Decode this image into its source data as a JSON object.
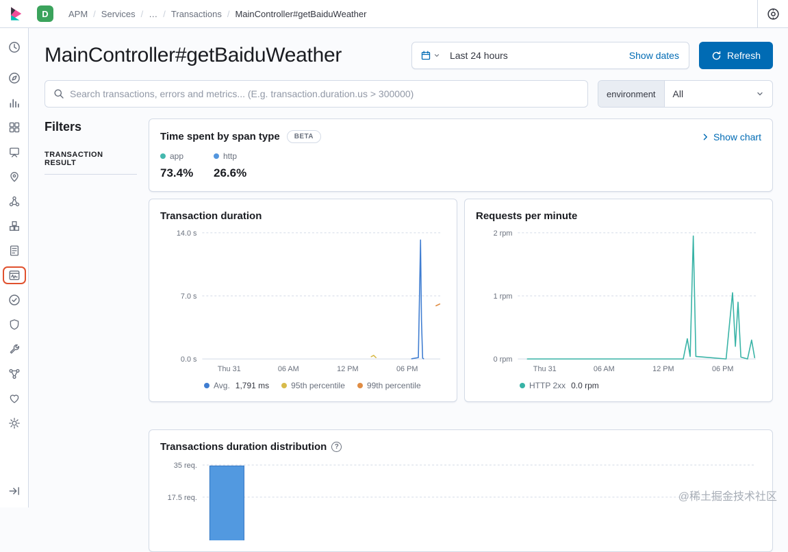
{
  "colors": {
    "accent": "#006bb4",
    "space_badge": "#3ba35c",
    "nav_highlight": "#e0512e"
  },
  "topbar": {
    "space_badge": "D",
    "breadcrumbs": [
      {
        "label": "APM"
      },
      {
        "label": "Services"
      },
      {
        "label": "…"
      },
      {
        "label": "Transactions"
      },
      {
        "label": "MainController#getBaiduWeather",
        "current": true
      }
    ]
  },
  "header": {
    "title": "MainController#getBaiduWeather",
    "time_range": "Last 24 hours",
    "show_dates_label": "Show dates",
    "refresh_label": "Refresh"
  },
  "search": {
    "placeholder": "Search transactions, errors and metrics... (E.g. transaction.duration.us > 300000)"
  },
  "environment_filter": {
    "label": "environment",
    "value": "All"
  },
  "filters": {
    "heading": "Filters",
    "section_title": "TRANSACTION RESULT"
  },
  "span_panel": {
    "title": "Time spent by span type",
    "beta_label": "BETA",
    "show_chart_label": "Show chart",
    "items": [
      {
        "label": "app",
        "value": "73.4%",
        "color": "#45b8ae"
      },
      {
        "label": "http",
        "value": "26.6%",
        "color": "#5396de"
      }
    ]
  },
  "icons": {
    "help": "?"
  },
  "chart_data": [
    {
      "type": "line",
      "title": "Transaction duration",
      "ylim": [
        0,
        14
      ],
      "y_ticks": [
        {
          "v": 14,
          "label": "14.0 s"
        },
        {
          "v": 7,
          "label": "7.0 s"
        },
        {
          "v": 0,
          "label": "0.0 s"
        }
      ],
      "x_ticks": [
        {
          "f": 0.113,
          "label": "Thu 31"
        },
        {
          "f": 0.362,
          "label": "06 AM"
        },
        {
          "f": 0.611,
          "label": "12 PM"
        },
        {
          "f": 0.861,
          "label": "06 PM"
        }
      ],
      "series": [
        {
          "name": "Avg.",
          "color": "#3f7dd1",
          "points": [
            [
              0.88,
              0.02
            ],
            [
              0.908,
              0.15
            ],
            [
              0.917,
              13.2
            ],
            [
              0.921,
              4.3
            ],
            [
              0.926,
              0.1
            ],
            [
              0.93,
              0.02
            ]
          ]
        },
        {
          "name": "95th percentile",
          "color": "#d8bb4b",
          "points": [
            [
              0.71,
              0.25
            ],
            [
              0.72,
              0.4
            ],
            [
              0.73,
              0.15
            ]
          ]
        },
        {
          "name": "99th percentile",
          "color": "#e08d44",
          "points": [
            [
              0.982,
              5.9
            ],
            [
              0.998,
              6.1
            ]
          ]
        }
      ],
      "legend": [
        {
          "label": "Avg.",
          "value": "1,791 ms",
          "color": "#3f7dd1"
        },
        {
          "label": "95th percentile",
          "value": "",
          "color": "#d8bb4b"
        },
        {
          "label": "99th percentile",
          "value": "",
          "color": "#e08d44"
        }
      ]
    },
    {
      "type": "line",
      "title": "Requests per minute",
      "ylim": [
        0,
        2
      ],
      "y_ticks": [
        {
          "v": 2,
          "label": "2 rpm"
        },
        {
          "v": 1,
          "label": "1 rpm"
        },
        {
          "v": 0,
          "label": "0 rpm"
        }
      ],
      "x_ticks": [
        {
          "f": 0.113,
          "label": "Thu 31"
        },
        {
          "f": 0.362,
          "label": "06 AM"
        },
        {
          "f": 0.611,
          "label": "12 PM"
        },
        {
          "f": 0.861,
          "label": "06 PM"
        }
      ],
      "series": [
        {
          "name": "HTTP 2xx",
          "color": "#38b3a6",
          "points": [
            [
              0.04,
              0
            ],
            [
              0.695,
              0
            ],
            [
              0.712,
              0.32
            ],
            [
              0.724,
              0.04
            ],
            [
              0.737,
              1.95
            ],
            [
              0.748,
              0.04
            ],
            [
              0.875,
              0
            ],
            [
              0.902,
              1.05
            ],
            [
              0.914,
              0.2
            ],
            [
              0.925,
              0.9
            ],
            [
              0.937,
              0.03
            ],
            [
              0.965,
              0
            ],
            [
              0.982,
              0.3
            ],
            [
              0.995,
              0.02
            ]
          ]
        }
      ],
      "legend": [
        {
          "label": "HTTP 2xx",
          "value": "0.0 rpm",
          "color": "#38b3a6"
        }
      ]
    },
    {
      "type": "bar",
      "title": "Transactions duration distribution",
      "ylim": [
        0,
        35
      ],
      "y_ticks": [
        {
          "v": 35,
          "label": "35 req."
        },
        {
          "v": 17.5,
          "label": "17.5 req."
        }
      ],
      "x_ticks": [],
      "bars": [
        {
          "f": 0.013,
          "wf": 0.062,
          "value": 34.5
        }
      ],
      "bar_color": "#5299e0",
      "bar_border": "#3275c2",
      "series": [],
      "legend": []
    }
  ],
  "watermark": "@稀土掘金技术社区"
}
